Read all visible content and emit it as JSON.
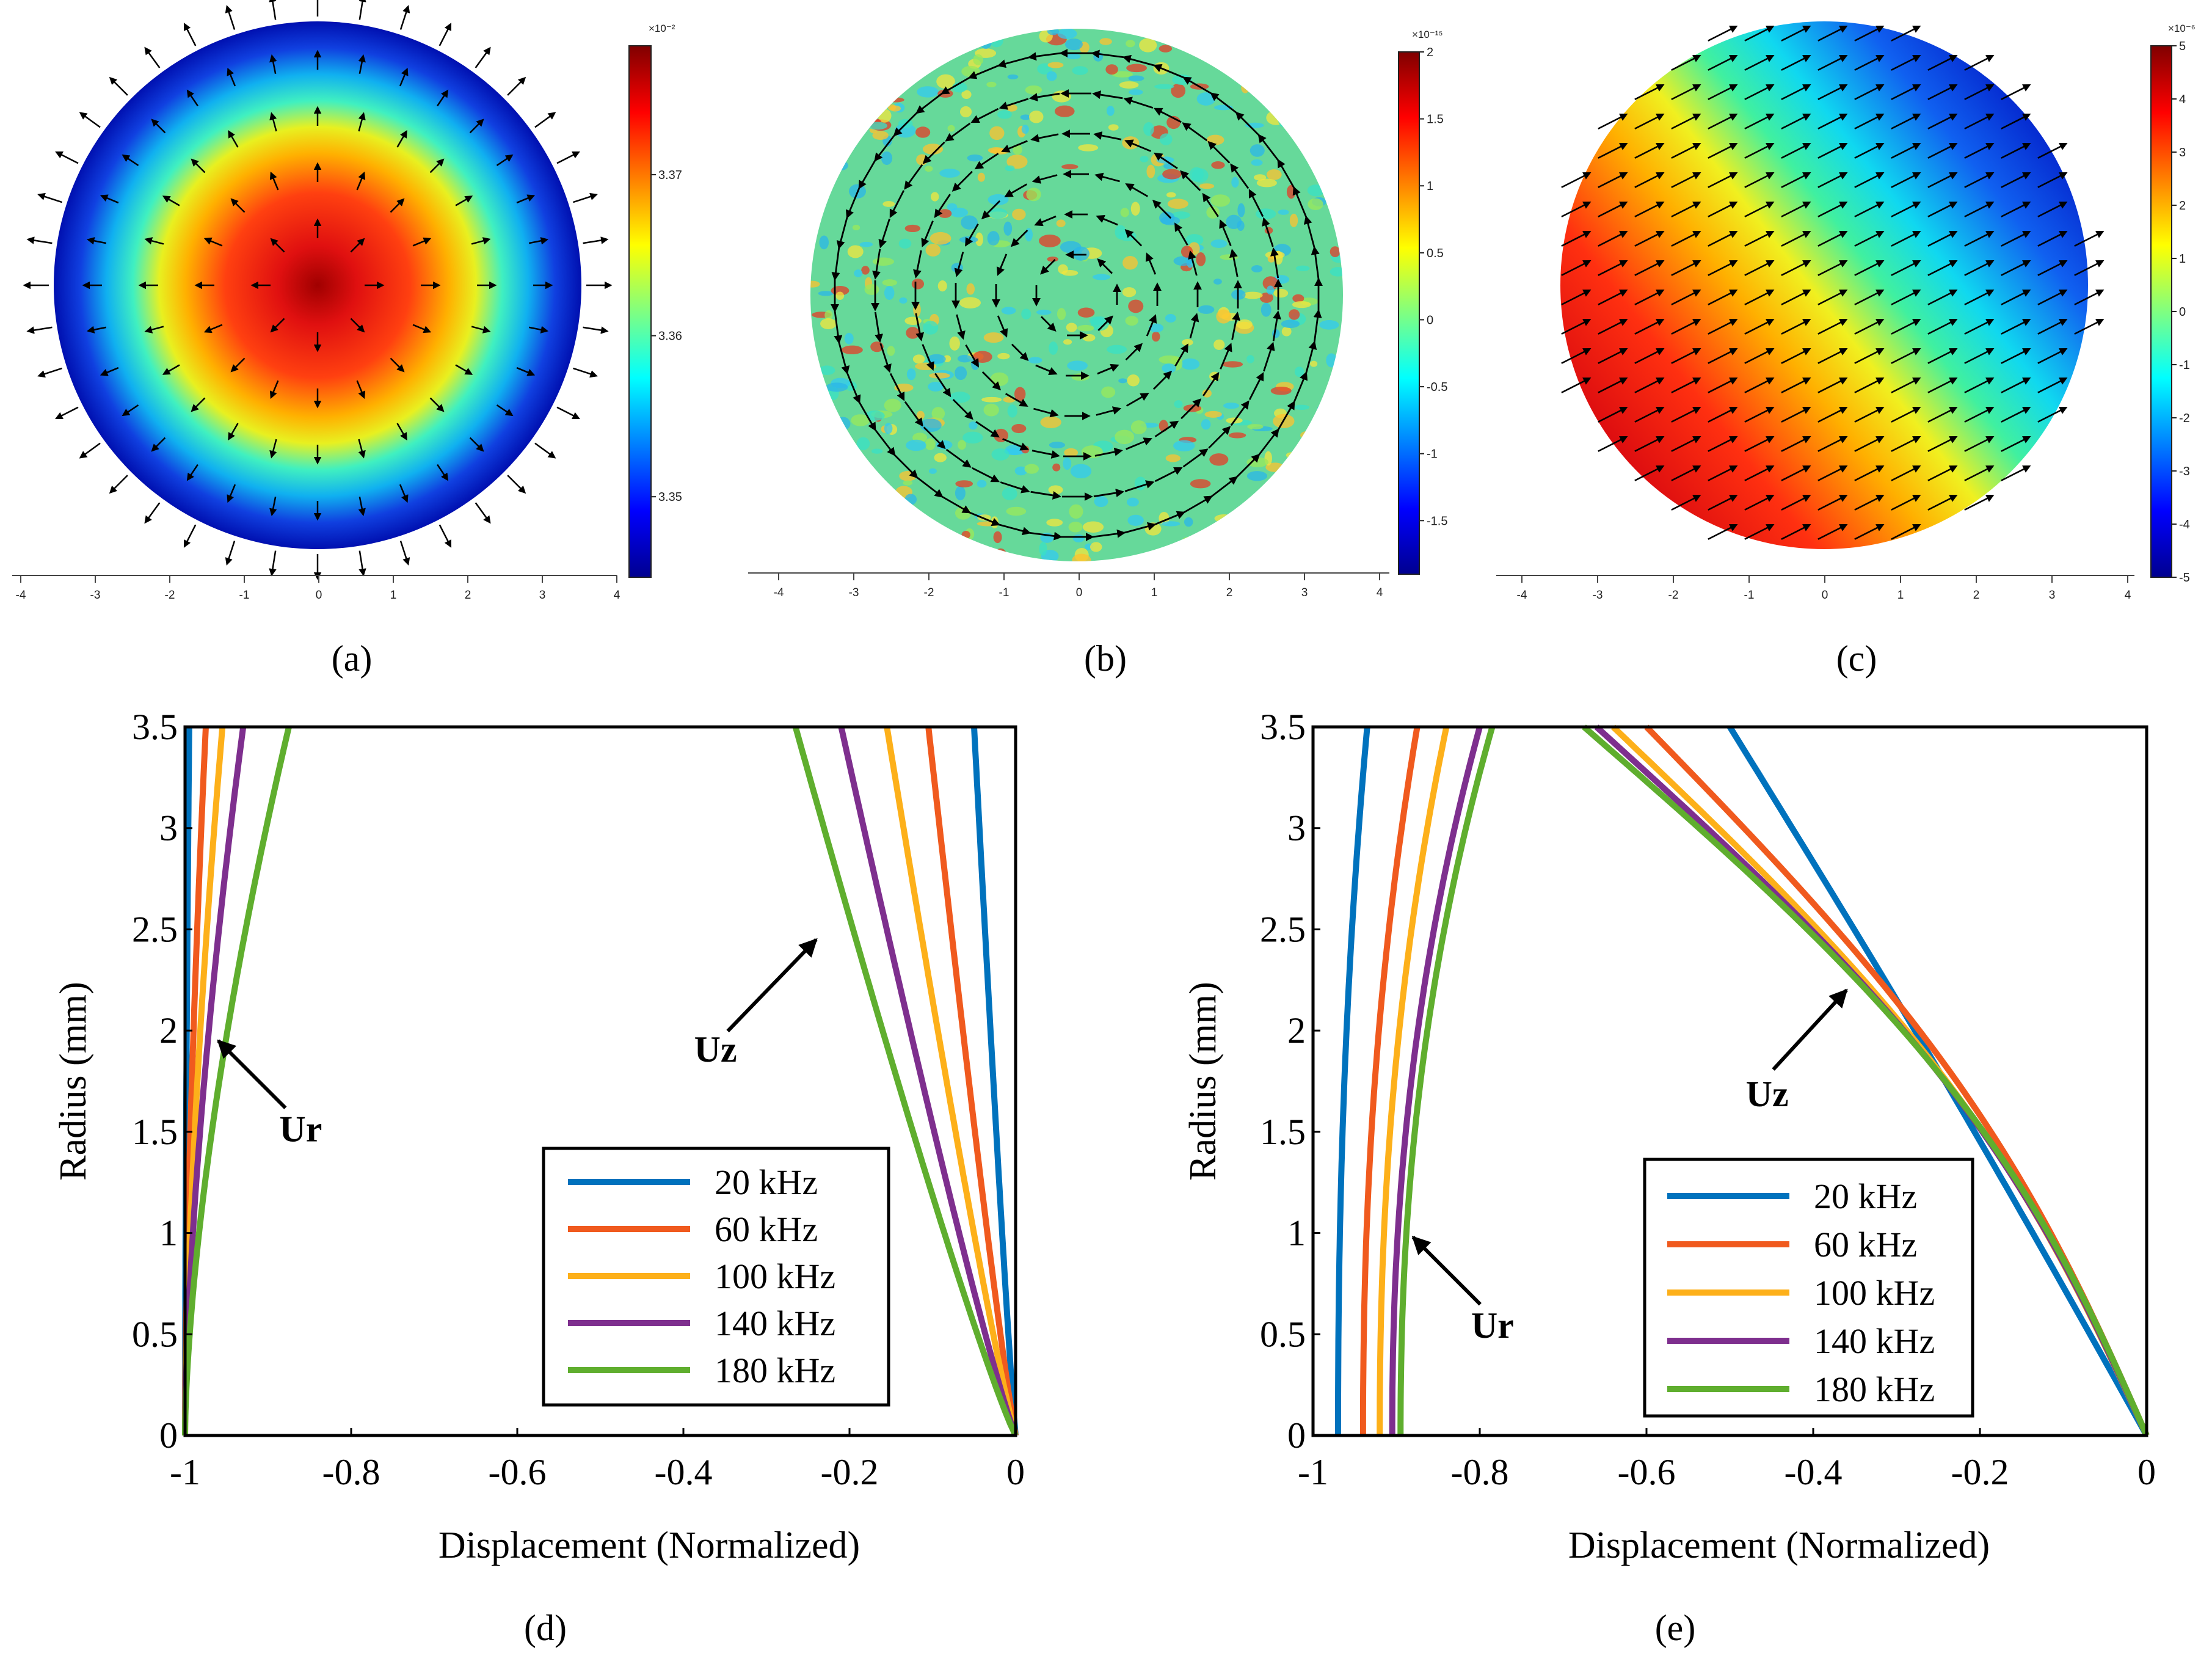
{
  "figure_labels": {
    "a": "(a)",
    "b": "(b)",
    "c": "(c)",
    "d": "(d)",
    "e": "(e)"
  },
  "chart_data": [
    {
      "id": "a",
      "type": "heatmap",
      "description_field": "radial displacement, radial arrows",
      "xticks": [
        "-4",
        "-3",
        "-2",
        "-1",
        "0",
        "1",
        "2",
        "3",
        "4"
      ],
      "xlim": [
        -4,
        4
      ],
      "colorbar": {
        "exponent": "×10⁻²",
        "ticks": [
          "3.37",
          "3.36",
          "3.35"
        ],
        "tick_values": [
          3.37,
          3.36,
          3.35
        ],
        "range": [
          3.345,
          3.378
        ]
      }
    },
    {
      "id": "b",
      "type": "heatmap",
      "xticks": [
        "-4",
        "-3",
        "-2",
        "-1",
        "0",
        "1",
        "2",
        "3",
        "4"
      ],
      "xlim": [
        -4,
        4
      ],
      "colorbar": {
        "exponent": "×10⁻¹⁵",
        "ticks": [
          "2",
          "1.5",
          "1",
          "0.5",
          "0",
          "-0.5",
          "-1",
          "-1.5"
        ],
        "tick_values": [
          2,
          1.5,
          1,
          0.5,
          0,
          -0.5,
          -1,
          -1.5
        ],
        "range": [
          -1.9,
          2
        ]
      }
    },
    {
      "id": "c",
      "type": "heatmap",
      "xticks": [
        "-4",
        "-3",
        "-2",
        "-1",
        "0",
        "1",
        "2",
        "3",
        "4"
      ],
      "xlim": [
        -4,
        4
      ],
      "colorbar": {
        "exponent": "×10⁻⁶",
        "ticks": [
          "5",
          "4",
          "3",
          "2",
          "1",
          "0",
          "-1",
          "-2",
          "-3",
          "-4",
          "-5"
        ],
        "tick_values": [
          5,
          4,
          3,
          2,
          1,
          0,
          -1,
          -2,
          -3,
          -4,
          -5
        ],
        "range": [
          -5,
          5
        ]
      }
    },
    {
      "id": "d",
      "type": "line",
      "xlabel": "Displacement (Normalized)",
      "ylabel": "Radius (mm)",
      "xlim": [
        -1.0,
        0.0
      ],
      "ylim": [
        0,
        3.5
      ],
      "xticks": [
        -1,
        -0.8,
        -0.6,
        -0.4,
        -0.2,
        0
      ],
      "xtick_labels": [
        "-1",
        "-0.8",
        "-0.6",
        "-0.4",
        "-0.2",
        "0"
      ],
      "yticks": [
        0,
        0.5,
        1,
        1.5,
        2,
        2.5,
        3,
        3.5
      ],
      "ytick_labels": [
        "0",
        "0.5",
        "1",
        "1.5",
        "2",
        "2.5",
        "3",
        "3.5"
      ],
      "annotations": [
        {
          "text": "Ur",
          "target": [
            -0.96,
            1.95
          ]
        },
        {
          "text": "Uz",
          "target": [
            -0.24,
            2.45
          ]
        }
      ],
      "legend": [
        "20 kHz",
        "60 kHz",
        "100 kHz",
        "140 kHz",
        "180 kHz"
      ],
      "series": [
        {
          "name": "20 kHz",
          "color": "#0072BD",
          "ur_top": -0.995,
          "uz_top": -0.05,
          "ur_curve": 1.6,
          "uz_curve": 0.9
        },
        {
          "name": "60 kHz",
          "color": "#F05A1E",
          "ur_top": -0.975,
          "uz_top": -0.105,
          "ur_curve": 1.6,
          "uz_curve": 0.9
        },
        {
          "name": "100 kHz",
          "color": "#FDB01A",
          "ur_top": -0.955,
          "uz_top": -0.155,
          "ur_curve": 1.6,
          "uz_curve": 0.9
        },
        {
          "name": "140 kHz",
          "color": "#7E2F8E",
          "ur_top": -0.93,
          "uz_top": -0.21,
          "ur_curve": 1.6,
          "uz_curve": 0.9
        },
        {
          "name": "180 kHz",
          "color": "#5FAE2E",
          "ur_top": -0.875,
          "uz_top": -0.265,
          "ur_curve": 1.6,
          "uz_curve": 0.9
        }
      ]
    },
    {
      "id": "e",
      "type": "line",
      "xlabel": "Displacement (Normalized)",
      "ylabel": "Radius (mm)",
      "xlim": [
        -1.0,
        0.0
      ],
      "ylim": [
        0,
        3.5
      ],
      "xticks": [
        -1,
        -0.8,
        -0.6,
        -0.4,
        -0.2,
        0
      ],
      "xtick_labels": [
        "-1",
        "-0.8",
        "-0.6",
        "-0.4",
        "-0.2",
        "0"
      ],
      "yticks": [
        0,
        0.5,
        1,
        1.5,
        2,
        2.5,
        3,
        3.5
      ],
      "ytick_labels": [
        "0",
        "0.5",
        "1",
        "1.5",
        "2",
        "2.5",
        "3",
        "3.5"
      ],
      "annotations": [
        {
          "text": "Ur",
          "target": [
            -0.88,
            0.98
          ]
        },
        {
          "text": "Uz",
          "target": [
            -0.36,
            2.2
          ]
        }
      ],
      "legend": [
        "20 kHz",
        "60 kHz",
        "100 kHz",
        "140 kHz",
        "180 kHz"
      ],
      "series": [
        {
          "name": "20 kHz",
          "color": "#0072BD",
          "ur_base": -0.97,
          "ur_top": -0.935,
          "uz_top": -0.5,
          "uz_shape": 0.05
        },
        {
          "name": "60 kHz",
          "color": "#F05A1E",
          "ur_base": -0.94,
          "ur_top": -0.875,
          "uz_top": -0.6,
          "uz_shape": 0.45
        },
        {
          "name": "100 kHz",
          "color": "#FDB01A",
          "ur_base": -0.92,
          "ur_top": -0.84,
          "uz_top": -0.64,
          "uz_shape": 0.5
        },
        {
          "name": "140 kHz",
          "color": "#7E2F8E",
          "ur_base": -0.905,
          "ur_top": -0.8,
          "uz_top": -0.66,
          "uz_shape": 0.55
        },
        {
          "name": "180 kHz",
          "color": "#5FAE2E",
          "ur_base": -0.895,
          "ur_top": -0.785,
          "uz_top": -0.675,
          "uz_shape": 0.6
        }
      ]
    }
  ]
}
